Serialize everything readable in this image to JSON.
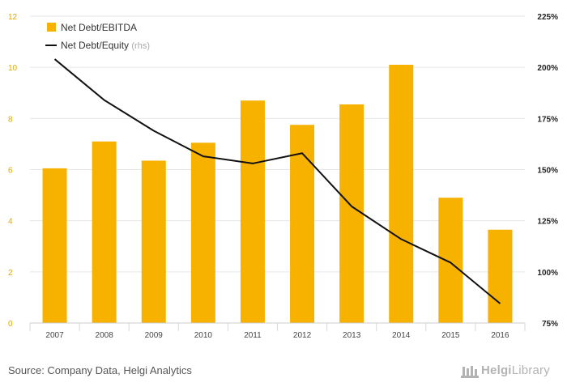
{
  "chart_data": {
    "type": "bar",
    "categories": [
      "2007",
      "2008",
      "2009",
      "2010",
      "2011",
      "2012",
      "2013",
      "2014",
      "2015",
      "2016"
    ],
    "series": [
      {
        "name": "Net Debt/EBITDA",
        "type": "bar",
        "axis": "left",
        "color": "#f7b200",
        "values": [
          6.05,
          7.1,
          6.35,
          7.05,
          8.7,
          7.75,
          8.55,
          10.1,
          4.9,
          3.65
        ]
      },
      {
        "name": "Net Debt/Equity",
        "type": "line",
        "axis": "right",
        "color": "#111111",
        "values": [
          204,
          184,
          169,
          156.5,
          153,
          158,
          132,
          116,
          104.5,
          84.5
        ]
      }
    ],
    "legend": [
      {
        "label": "Net Debt/EBITDA",
        "suffix": ""
      },
      {
        "label": "Net Debt/Equity",
        "suffix": "(rhs)"
      }
    ],
    "legend_position": "top-left",
    "ylim": [
      0,
      12
    ],
    "y_ticks": [
      "0",
      "2",
      "4",
      "6",
      "8",
      "10",
      "12"
    ],
    "y2lim": [
      75,
      225
    ],
    "y2_ticks": [
      "75%",
      "100%",
      "125%",
      "150%",
      "175%",
      "200%",
      "225%"
    ],
    "grid": true,
    "source": "Source: Company Data, Helgi Analytics",
    "brand": {
      "prefix": "Helgi",
      "suffix": "Library"
    }
  }
}
